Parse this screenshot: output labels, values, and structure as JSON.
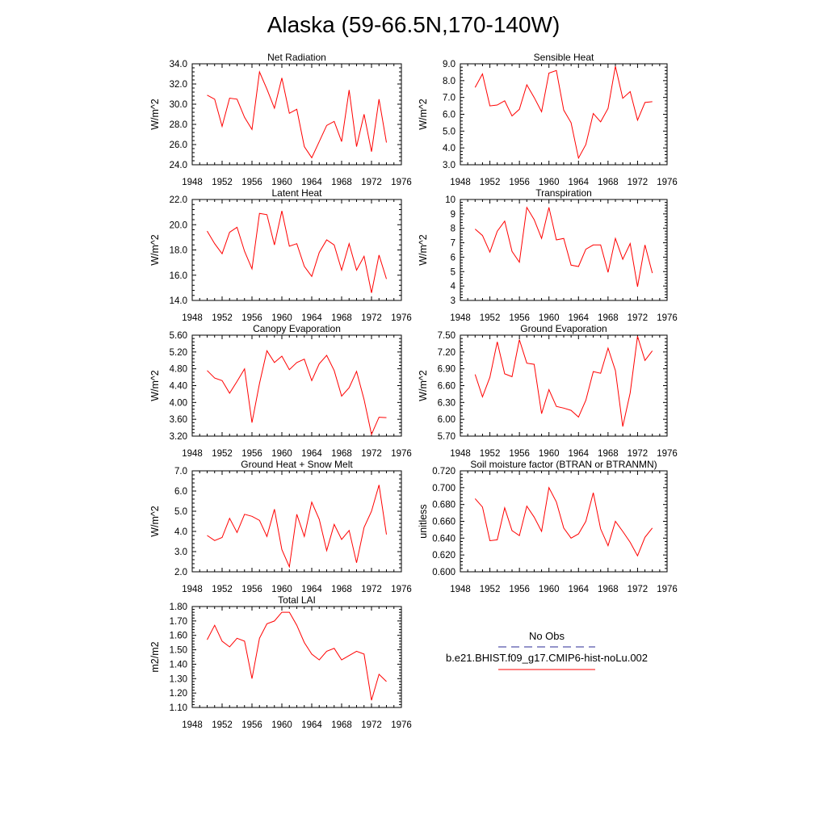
{
  "title": "Alaska (59-66.5N,170-140W)",
  "colors": {
    "series": "#ff0000",
    "obs": "#5555aa",
    "axes": "#000000"
  },
  "legend": {
    "obs_label": "No Obs",
    "model_label": "b.e21.BHIST.f09_g17.CMIP6-hist-noLu.002"
  },
  "chart_data": [
    {
      "type": "line",
      "title": "Net Radiation",
      "ylabel": "W/m^2",
      "xlim": [
        1948,
        1976
      ],
      "ylim": [
        24,
        34
      ],
      "xticks": [
        "1948",
        "1952",
        "1956",
        "1960",
        "1964",
        "1968",
        "1972",
        "1976"
      ],
      "yticks": [
        "24.0",
        "26.0",
        "28.0",
        "30.0",
        "32.0",
        "34.0"
      ],
      "grid": false,
      "series": [
        {
          "x": [
            1950,
            1951,
            1952,
            1953,
            1954,
            1955,
            1956,
            1957,
            1958,
            1959,
            1960,
            1961,
            1962,
            1963,
            1964,
            1965,
            1966,
            1967,
            1968,
            1969,
            1970,
            1971,
            1972,
            1973,
            1974
          ],
          "values": [
            30.9,
            30.5,
            27.8,
            30.6,
            30.5,
            28.7,
            27.5,
            33.2,
            31.5,
            29.6,
            32.6,
            29.1,
            29.5,
            25.8,
            24.7,
            26.3,
            27.9,
            28.3,
            26.3,
            31.4,
            25.8,
            29.0,
            25.3,
            30.5,
            26.2
          ]
        }
      ]
    },
    {
      "type": "line",
      "title": "Sensible Heat",
      "ylabel": "W/m^2",
      "xlim": [
        1948,
        1976
      ],
      "ylim": [
        3,
        9
      ],
      "xticks": [
        "1948",
        "1952",
        "1956",
        "1960",
        "1964",
        "1968",
        "1972",
        "1976"
      ],
      "yticks": [
        "3.0",
        "4.0",
        "5.0",
        "6.0",
        "7.0",
        "8.0",
        "9.0"
      ],
      "grid": false,
      "series": [
        {
          "x": [
            1950,
            1951,
            1952,
            1953,
            1954,
            1955,
            1956,
            1957,
            1958,
            1959,
            1960,
            1961,
            1962,
            1963,
            1964,
            1965,
            1966,
            1967,
            1968,
            1969,
            1970,
            1971,
            1972,
            1973,
            1974
          ],
          "values": [
            7.6,
            8.4,
            6.5,
            6.55,
            6.8,
            5.9,
            6.3,
            7.75,
            7.0,
            6.15,
            8.45,
            8.6,
            6.25,
            5.5,
            3.4,
            4.2,
            6.05,
            5.55,
            6.35,
            8.85,
            6.95,
            7.35,
            5.65,
            6.7,
            6.75
          ]
        }
      ]
    },
    {
      "type": "line",
      "title": "Latent Heat",
      "ylabel": "W/m^2",
      "xlim": [
        1948,
        1976
      ],
      "ylim": [
        14,
        22
      ],
      "xticks": [
        "1948",
        "1952",
        "1956",
        "1960",
        "1964",
        "1968",
        "1972",
        "1976"
      ],
      "yticks": [
        "14.0",
        "16.0",
        "18.0",
        "20.0",
        "22.0"
      ],
      "grid": false,
      "series": [
        {
          "x": [
            1950,
            1951,
            1952,
            1953,
            1954,
            1955,
            1956,
            1957,
            1958,
            1959,
            1960,
            1961,
            1962,
            1963,
            1964,
            1965,
            1966,
            1967,
            1968,
            1969,
            1970,
            1971,
            1972,
            1973,
            1974
          ],
          "values": [
            19.5,
            18.5,
            17.7,
            19.4,
            19.8,
            17.9,
            16.5,
            20.9,
            20.8,
            18.4,
            21.1,
            18.3,
            18.5,
            16.7,
            15.9,
            17.8,
            18.8,
            18.4,
            16.4,
            18.5,
            16.4,
            17.5,
            14.6,
            17.6,
            15.7
          ]
        }
      ]
    },
    {
      "type": "line",
      "title": "Transpiration",
      "ylabel": "W/m^2",
      "xlim": [
        1948,
        1976
      ],
      "ylim": [
        3,
        10
      ],
      "xticks": [
        "1948",
        "1952",
        "1956",
        "1960",
        "1964",
        "1968",
        "1972",
        "1976"
      ],
      "yticks": [
        "3",
        "4",
        "5",
        "6",
        "7",
        "8",
        "9",
        "10"
      ],
      "grid": false,
      "series": [
        {
          "x": [
            1950,
            1951,
            1952,
            1953,
            1954,
            1955,
            1956,
            1957,
            1958,
            1959,
            1960,
            1961,
            1962,
            1963,
            1964,
            1965,
            1966,
            1967,
            1968,
            1969,
            1970,
            1971,
            1972,
            1973,
            1974
          ],
          "values": [
            7.95,
            7.5,
            6.35,
            7.8,
            8.5,
            6.4,
            5.65,
            9.45,
            8.6,
            7.3,
            9.45,
            7.2,
            7.3,
            5.45,
            5.35,
            6.55,
            6.85,
            6.85,
            4.95,
            7.3,
            5.85,
            6.95,
            3.95,
            6.85,
            4.9
          ]
        }
      ]
    },
    {
      "type": "line",
      "title": "Canopy Evaporation",
      "ylabel": "W/m^2",
      "xlim": [
        1948,
        1976
      ],
      "ylim": [
        3.2,
        5.6
      ],
      "xticks": [
        "1948",
        "1952",
        "1956",
        "1960",
        "1964",
        "1968",
        "1972",
        "1976"
      ],
      "yticks": [
        "3.20",
        "3.60",
        "4.00",
        "4.40",
        "4.80",
        "5.20",
        "5.60"
      ],
      "grid": false,
      "series": [
        {
          "x": [
            1950,
            1951,
            1952,
            1953,
            1954,
            1955,
            1956,
            1957,
            1958,
            1959,
            1960,
            1961,
            1962,
            1963,
            1964,
            1965,
            1966,
            1967,
            1968,
            1969,
            1970,
            1971,
            1972,
            1973,
            1974
          ],
          "values": [
            4.76,
            4.58,
            4.52,
            4.22,
            4.5,
            4.8,
            3.52,
            4.45,
            5.23,
            4.95,
            5.1,
            4.78,
            4.95,
            5.03,
            4.52,
            4.92,
            5.12,
            4.76,
            4.15,
            4.35,
            4.74,
            4.07,
            3.24,
            3.65,
            3.64
          ]
        }
      ]
    },
    {
      "type": "line",
      "title": "Ground Evaporation",
      "ylabel": "W/m^2",
      "xlim": [
        1948,
        1976
      ],
      "ylim": [
        5.7,
        7.5
      ],
      "xticks": [
        "1948",
        "1952",
        "1956",
        "1960",
        "1964",
        "1968",
        "1972",
        "1976"
      ],
      "yticks": [
        "5.70",
        "6.00",
        "6.30",
        "6.60",
        "6.90",
        "7.20",
        "7.50"
      ],
      "grid": false,
      "series": [
        {
          "x": [
            1950,
            1951,
            1952,
            1953,
            1954,
            1955,
            1956,
            1957,
            1958,
            1959,
            1960,
            1961,
            1962,
            1963,
            1964,
            1965,
            1966,
            1967,
            1968,
            1969,
            1970,
            1971,
            1972,
            1973,
            1974
          ],
          "values": [
            6.8,
            6.4,
            6.75,
            7.38,
            6.81,
            6.76,
            7.42,
            7.0,
            6.98,
            6.1,
            6.53,
            6.23,
            6.2,
            6.16,
            6.04,
            6.34,
            6.85,
            6.82,
            7.27,
            6.87,
            5.87,
            6.47,
            7.48,
            7.05,
            7.22
          ]
        }
      ]
    },
    {
      "type": "line",
      "title": "Ground Heat + Snow Melt",
      "ylabel": "W/m^2",
      "xlim": [
        1948,
        1976
      ],
      "ylim": [
        2,
        7
      ],
      "xticks": [
        "1948",
        "1952",
        "1956",
        "1960",
        "1964",
        "1968",
        "1972",
        "1976"
      ],
      "yticks": [
        "2.0",
        "3.0",
        "4.0",
        "5.0",
        "6.0",
        "7.0"
      ],
      "grid": false,
      "series": [
        {
          "x": [
            1950,
            1951,
            1952,
            1953,
            1954,
            1955,
            1956,
            1957,
            1958,
            1959,
            1960,
            1961,
            1962,
            1963,
            1964,
            1965,
            1966,
            1967,
            1968,
            1969,
            1970,
            1971,
            1972,
            1973,
            1974
          ],
          "values": [
            3.8,
            3.55,
            3.7,
            4.65,
            3.95,
            4.85,
            4.75,
            4.55,
            3.75,
            5.1,
            3.1,
            2.25,
            4.85,
            3.75,
            5.45,
            4.6,
            3.05,
            4.35,
            3.6,
            4.05,
            2.45,
            4.2,
            5.0,
            6.3,
            3.85
          ]
        }
      ]
    },
    {
      "type": "line",
      "title": "Soil moisture factor (BTRAN or BTRANMN)",
      "ylabel": "unitless",
      "xlim": [
        1948,
        1976
      ],
      "ylim": [
        0.6,
        0.72
      ],
      "xticks": [
        "1948",
        "1952",
        "1956",
        "1960",
        "1964",
        "1968",
        "1972",
        "1976"
      ],
      "yticks": [
        "0.600",
        "0.620",
        "0.640",
        "0.660",
        "0.680",
        "0.700",
        "0.720"
      ],
      "grid": false,
      "series": [
        {
          "x": [
            1950,
            1951,
            1952,
            1953,
            1954,
            1955,
            1956,
            1957,
            1958,
            1959,
            1960,
            1961,
            1962,
            1963,
            1964,
            1965,
            1966,
            1967,
            1968,
            1969,
            1970,
            1971,
            1972,
            1973,
            1974
          ],
          "values": [
            0.687,
            0.677,
            0.637,
            0.638,
            0.676,
            0.649,
            0.643,
            0.678,
            0.665,
            0.648,
            0.7,
            0.683,
            0.652,
            0.64,
            0.645,
            0.66,
            0.694,
            0.651,
            0.631,
            0.66,
            0.648,
            0.635,
            0.619,
            0.641,
            0.652
          ]
        }
      ]
    },
    {
      "type": "line",
      "title": "Total LAI",
      "ylabel": "m2/m2",
      "xlim": [
        1948,
        1976
      ],
      "ylim": [
        1.1,
        1.8
      ],
      "xticks": [
        "1948",
        "1952",
        "1956",
        "1960",
        "1964",
        "1968",
        "1972",
        "1976"
      ],
      "yticks": [
        "1.10",
        "1.20",
        "1.30",
        "1.40",
        "1.50",
        "1.60",
        "1.70",
        "1.80"
      ],
      "grid": false,
      "series": [
        {
          "x": [
            1950,
            1951,
            1952,
            1953,
            1954,
            1955,
            1956,
            1957,
            1958,
            1959,
            1960,
            1961,
            1962,
            1963,
            1964,
            1965,
            1966,
            1967,
            1968,
            1969,
            1970,
            1971,
            1972,
            1973,
            1974
          ],
          "values": [
            1.57,
            1.67,
            1.56,
            1.52,
            1.58,
            1.56,
            1.3,
            1.58,
            1.68,
            1.7,
            1.76,
            1.76,
            1.67,
            1.55,
            1.47,
            1.43,
            1.49,
            1.51,
            1.43,
            1.46,
            1.49,
            1.47,
            1.15,
            1.33,
            1.28
          ]
        }
      ]
    }
  ]
}
